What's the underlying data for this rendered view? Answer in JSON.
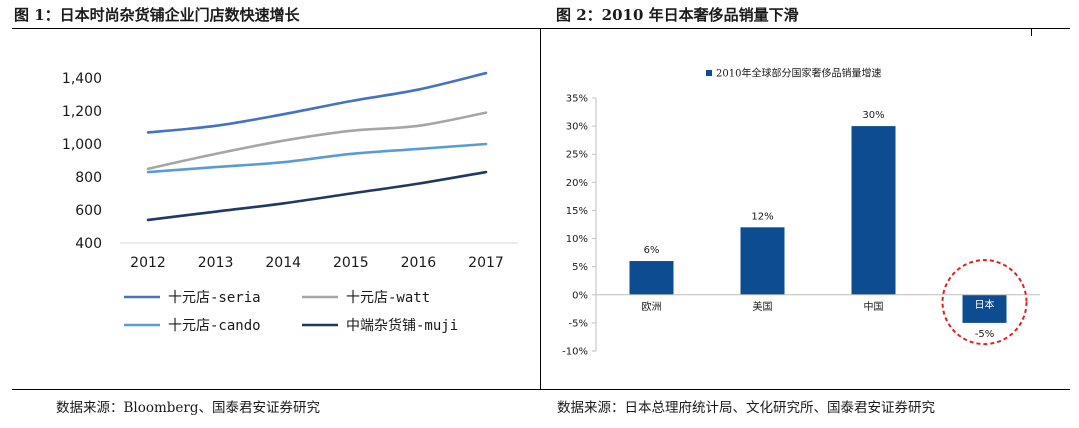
{
  "figure1": {
    "title": "图 1：日本时尚杂货铺企业门店数快速增长",
    "source": "数据来源：Bloomberg、国泰君安证券研究"
  },
  "figure2": {
    "title": "图 2：2010 年日本奢侈品销量下滑",
    "source": "数据来源：日本总理府统计局、文化研究所、国泰君安证券研究"
  },
  "chart_data": [
    {
      "type": "line",
      "x": [
        2012,
        2013,
        2014,
        2015,
        2016,
        2017
      ],
      "x_tick_labels": [
        "2012",
        "2013",
        "2014",
        "2015",
        "2016",
        "2017"
      ],
      "ylim": [
        400,
        1400
      ],
      "y_ticks": [
        400,
        600,
        800,
        1000,
        1200,
        1400
      ],
      "y_tick_labels": [
        "400",
        "600",
        "800",
        "1,000",
        "1,200",
        "1,400"
      ],
      "grid": false,
      "legend_position": "bottom",
      "series": [
        {
          "name": "十元店-seria",
          "color": "#4472C4",
          "values": [
            1070,
            1110,
            1180,
            1260,
            1330,
            1430
          ]
        },
        {
          "name": "十元店-watt",
          "color": "#A6A6A6",
          "values": [
            850,
            940,
            1020,
            1080,
            1110,
            1190
          ]
        },
        {
          "name": "十元店-cando",
          "color": "#5B9BD5",
          "values": [
            830,
            860,
            890,
            940,
            970,
            1000
          ]
        },
        {
          "name": "中端杂货铺-muji",
          "color": "#1F3864",
          "values": [
            540,
            590,
            640,
            700,
            760,
            830
          ]
        }
      ]
    },
    {
      "type": "bar",
      "categories": [
        "欧洲",
        "美国",
        "中国",
        "日本"
      ],
      "series": [
        {
          "name": "2010年全球部分国家奢侈品销量增速",
          "color": "#0E4C92",
          "values": [
            6,
            12,
            30,
            -5
          ]
        }
      ],
      "data_labels": [
        "6%",
        "12%",
        "30%",
        "-5%"
      ],
      "ylim": [
        -10,
        35
      ],
      "y_ticks": [
        -10,
        -5,
        0,
        5,
        10,
        15,
        20,
        25,
        30,
        35
      ],
      "y_tick_labels": [
        "-10%",
        "-5%",
        "0%",
        "5%",
        "10%",
        "15%",
        "20%",
        "25%",
        "30%",
        "35%"
      ],
      "grid": false,
      "legend_position": "top",
      "highlight": {
        "category": "日本",
        "color": "#E02020",
        "style": "dashed-circle"
      }
    }
  ]
}
